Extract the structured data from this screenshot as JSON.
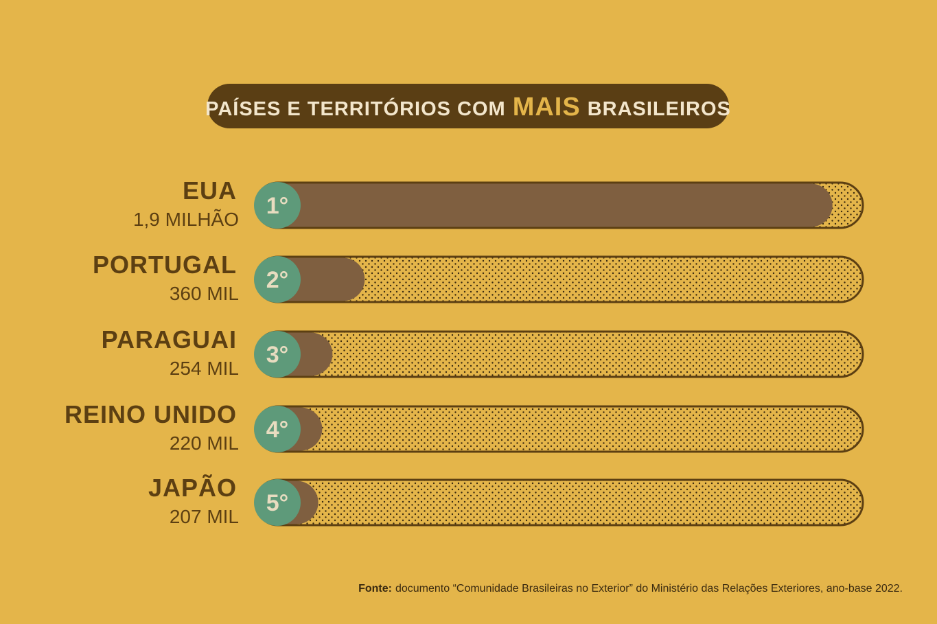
{
  "chart_data": {
    "type": "bar",
    "title": [
      "PAÍSES E TERRITÓRIOS COM",
      "MAIS",
      "BRASILEIROS"
    ],
    "categories": [
      "EUA",
      "PORTUGAL",
      "PARAGUAI",
      "REINO UNIDO",
      "JAPÃO"
    ],
    "ranks": [
      "1°",
      "2°",
      "3°",
      "4°",
      "5°"
    ],
    "values": [
      1900000,
      360000,
      254000,
      220000,
      207000
    ],
    "value_labels": [
      "1,9 MILHÃO",
      "360 MIL",
      "254 MIL",
      "220 MIL",
      "207 MIL"
    ],
    "xlim": [
      0,
      2000000
    ],
    "color": "#7f5f40",
    "source_label": "Fonte:",
    "source": "documento “Comunidade Brasileiras no Exterior” do Ministério das Relações Exteriores, ano-base 2022."
  }
}
